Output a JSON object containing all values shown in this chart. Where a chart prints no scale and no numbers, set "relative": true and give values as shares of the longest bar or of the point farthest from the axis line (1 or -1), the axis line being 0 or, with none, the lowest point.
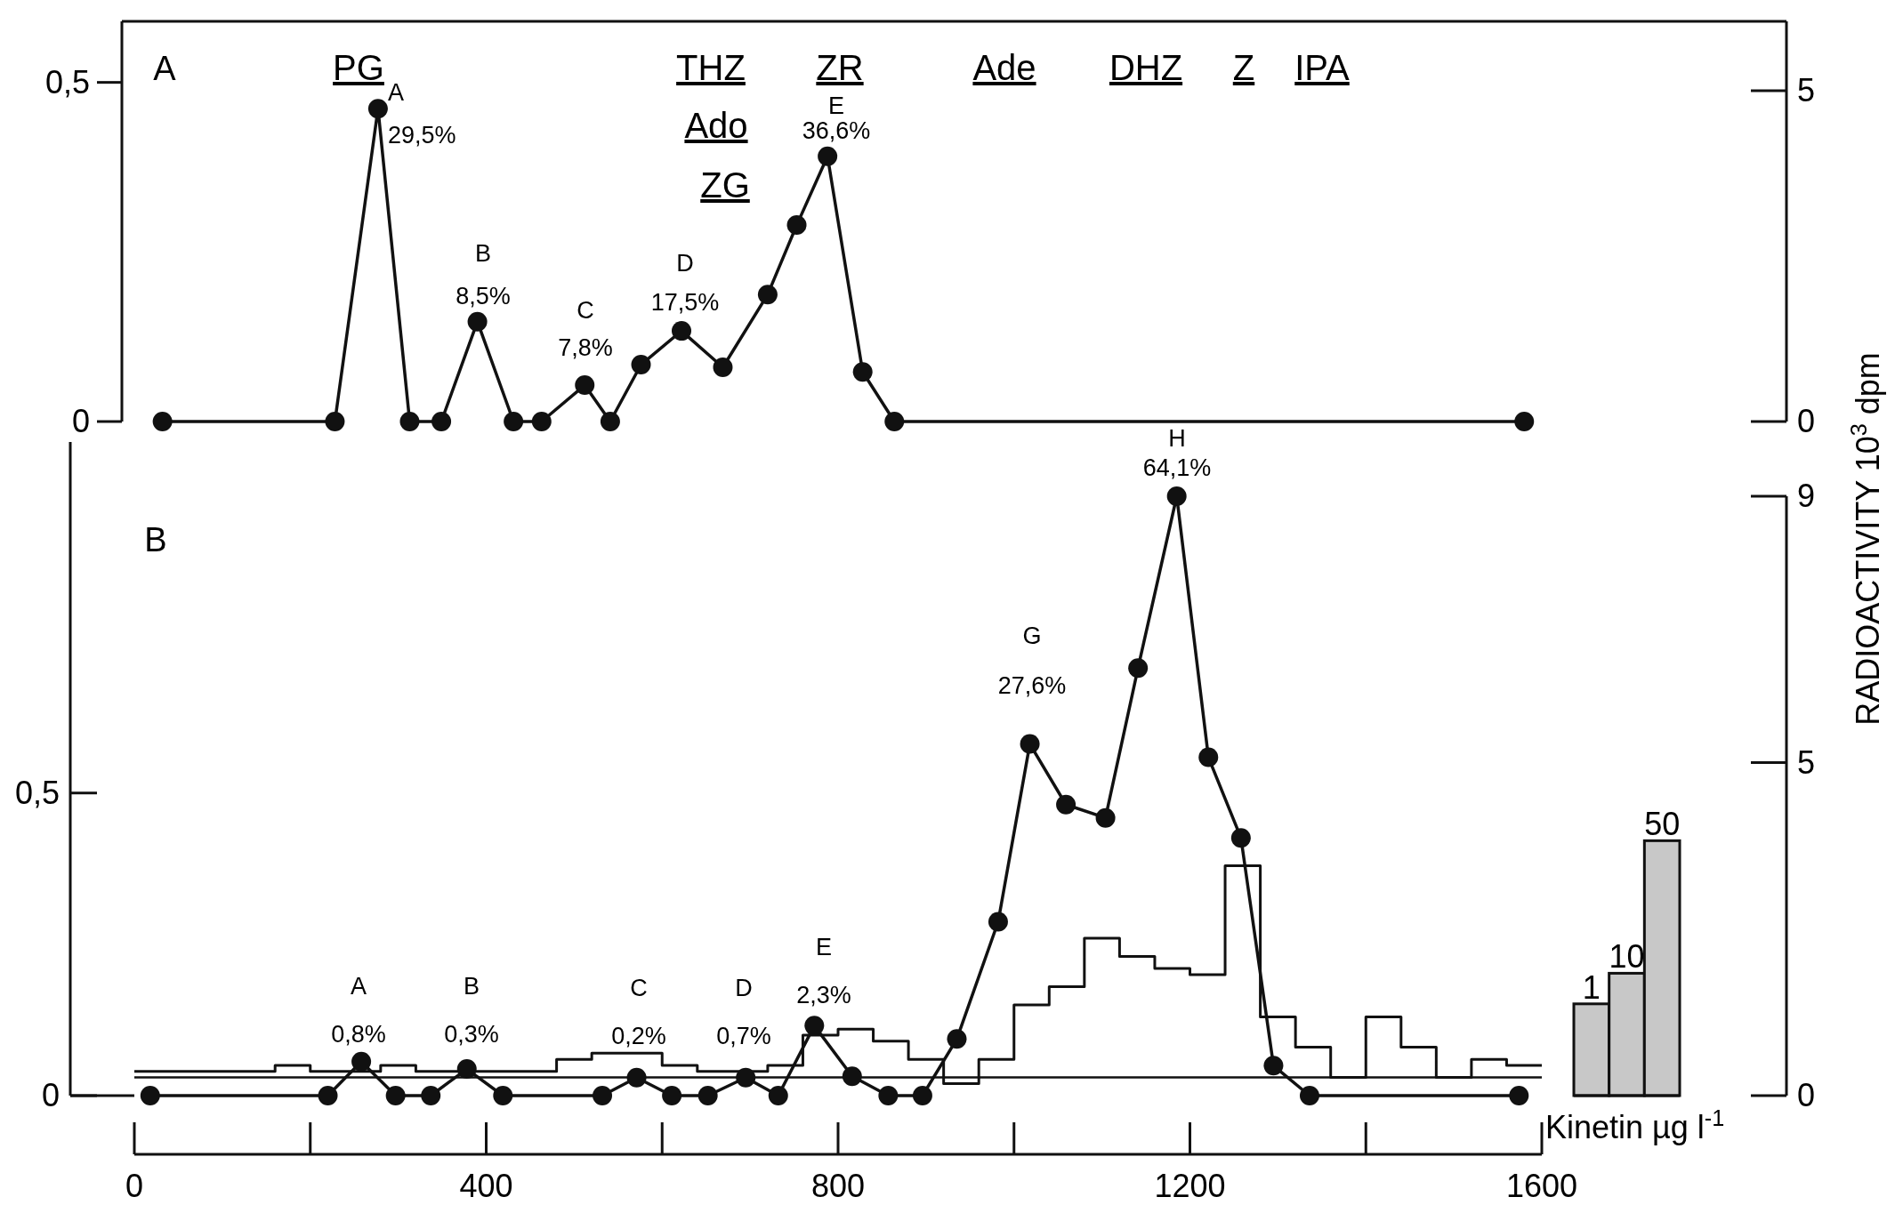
{
  "chart_data": [
    {
      "type": "line",
      "xlim": [
        0,
        1600
      ],
      "ylim": [
        0,
        0.59
      ],
      "yticks": [
        0,
        {
          "value": 0.5,
          "label": "0,5"
        }
      ],
      "y2lim": [
        0,
        6.05
      ],
      "y2ticks": [
        0,
        5
      ],
      "tick_labels": "y",
      "marker": "circle",
      "series": [
        {
          "axis": "y2",
          "color": "#111111",
          "x": [
            32,
            228,
            277,
            313,
            349,
            390,
            431,
            463,
            512,
            541,
            576,
            622,
            669,
            720,
            753,
            788,
            828,
            864,
            1580
          ],
          "values": [
            0,
            0,
            4.73,
            0,
            0,
            1.51,
            0,
            0,
            0.55,
            0,
            0.86,
            1.37,
            0.82,
            1.92,
            2.97,
            4.01,
            0.75,
            0,
            0
          ]
        }
      ],
      "annotations": [
        "A",
        "PG",
        "THZ",
        "Ado",
        "ZG",
        "ZR",
        "Ade",
        "DHZ",
        "Z",
        "IPA",
        "A\n29,5%",
        "B\n8,5%",
        "C\n7,8%",
        "D\n17,5%",
        "E\n36,6%"
      ]
    },
    {
      "type": "line",
      "xlim": [
        0,
        1600
      ],
      "xticks": [
        0,
        400,
        800,
        1200,
        1600
      ],
      "ylim": [
        0,
        1.08
      ],
      "yticks": [
        0,
        {
          "value": 0.5,
          "label": "0,5"
        }
      ],
      "y2lim": [
        0,
        9
      ],
      "y2ticks": [
        0,
        5,
        9
      ],
      "y2label": "RADIOACTIVITY 10$^{3}$ dpm",
      "series": [
        {
          "type": "step",
          "color": "#111111",
          "x": [
            0,
            160,
            200,
            280,
            320,
            400,
            440,
            480,
            520,
            560,
            600,
            640,
            720,
            760,
            800,
            840,
            880,
            920,
            960,
            1000,
            1040,
            1080,
            1120,
            1160,
            1200,
            1240,
            1280,
            1320,
            1360,
            1400,
            1440,
            1480,
            1520,
            1560,
            1600
          ],
          "values": [
            0.04,
            0.05,
            0.04,
            0.05,
            0.04,
            0.04,
            0.04,
            0.06,
            0.07,
            0.07,
            0.05,
            0.04,
            0.05,
            0.1,
            0.11,
            0.09,
            0.06,
            0.02,
            0.06,
            0.15,
            0.18,
            0.26,
            0.23,
            0.21,
            0.2,
            0.38,
            0.13,
            0.08,
            0.03,
            0.13,
            0.08,
            0.03,
            0.06,
            0.05,
            0.05
          ]
        },
        {
          "axis": "y2",
          "marker": "circle",
          "color": "#111111",
          "x": [
            18,
            220,
            258,
            297,
            337,
            378,
            419,
            532,
            571,
            611,
            652,
            695,
            732,
            773,
            816,
            857,
            896,
            935,
            982,
            1018,
            1059,
            1104,
            1141,
            1185,
            1221,
            1258,
            1295,
            1336,
            1574
          ],
          "values": [
            0,
            0,
            0.51,
            0,
            0,
            0.4,
            0,
            0,
            0.27,
            0,
            0,
            0.27,
            0,
            1.05,
            0.29,
            0,
            0,
            0.85,
            2.61,
            5.28,
            4.37,
            4.17,
            6.42,
            9,
            5.08,
            3.87,
            0.45,
            0,
            0
          ]
        }
      ],
      "ref_lines": [
        {
          "axis": "y",
          "value": 0.03,
          "color": "#111111"
        }
      ],
      "annotations": [
        "B",
        "A\n0,8%",
        "B\n0,3%",
        "C\n0,2%",
        "D\n0,7%",
        "E\n2,3%",
        "G\n27,6%",
        "H\n64,1%"
      ]
    },
    {
      "type": "bar",
      "categories": [
        "1",
        "10",
        "50"
      ],
      "values": [
        0.36,
        0.48,
        1
      ],
      "relative": true,
      "color": "#c8c8c8",
      "xlabel": "Kinetin µg l$^{-1}$",
      "tick_labels": "x"
    }
  ]
}
